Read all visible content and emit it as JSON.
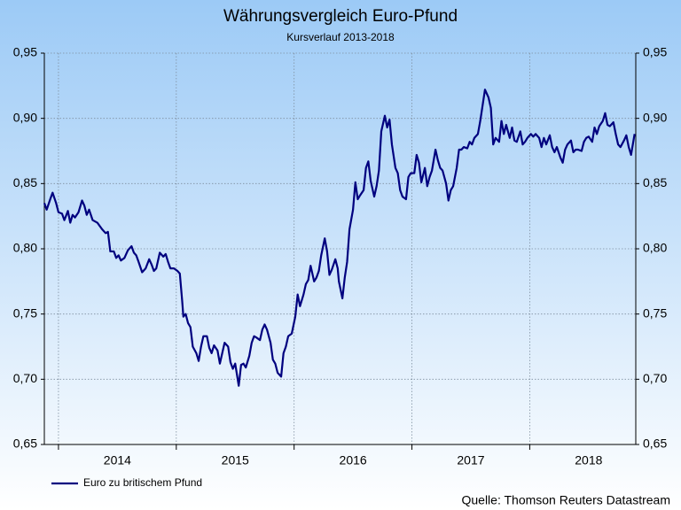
{
  "chart_data": {
    "type": "line",
    "title": "Währungsvergleich Euro-Pfund",
    "subtitle": "Kursverlauf 2013-2018",
    "source": "Quelle: Thomson Reuters Datastream",
    "xlim": [
      2013.88,
      2018.9
    ],
    "xticks": [
      2014,
      2015,
      2016,
      2017,
      2018
    ],
    "ylim": [
      0.65,
      0.95
    ],
    "yticks": [
      {
        "value": 0.65,
        "label": "0,65"
      },
      {
        "value": 0.7,
        "label": "0,70"
      },
      {
        "value": 0.75,
        "label": "0,75"
      },
      {
        "value": 0.8,
        "label": "0,80"
      },
      {
        "value": 0.85,
        "label": "0,85"
      },
      {
        "value": 0.9,
        "label": "0,90"
      },
      {
        "value": 0.95,
        "label": "0,95"
      }
    ],
    "grid": true,
    "legend": "bottom-left",
    "x": [
      2013.88,
      2013.9,
      2013.93,
      2013.95,
      2013.98,
      2014.0,
      2014.03,
      2014.05,
      2014.08,
      2014.1,
      2014.12,
      2014.14,
      2014.17,
      2014.2,
      2014.22,
      2014.24,
      2014.26,
      2014.29,
      2014.33,
      2014.37,
      2014.4,
      2014.42,
      2014.44,
      2014.47,
      2014.49,
      2014.51,
      2014.53,
      2014.56,
      2014.59,
      2014.62,
      2014.64,
      2014.66,
      2014.68,
      2014.71,
      2014.74,
      2014.77,
      2014.79,
      2014.81,
      2014.83,
      2014.86,
      2014.89,
      2014.91,
      2014.93,
      2014.95,
      2014.98,
      2015.01,
      2015.03,
      2015.05,
      2015.06,
      2015.08,
      2015.1,
      2015.12,
      2015.14,
      2015.17,
      2015.19,
      2015.21,
      2015.23,
      2015.26,
      2015.28,
      2015.3,
      2015.32,
      2015.35,
      2015.37,
      2015.39,
      2015.41,
      2015.44,
      2015.46,
      2015.48,
      2015.5,
      2015.53,
      2015.55,
      2015.57,
      2015.59,
      2015.62,
      2015.64,
      2015.66,
      2015.68,
      2015.71,
      2015.73,
      2015.75,
      2015.77,
      2015.8,
      2015.82,
      2015.84,
      2015.86,
      2015.89,
      2015.91,
      2015.93,
      2015.95,
      2015.98,
      2016.01,
      2016.03,
      2016.05,
      2016.08,
      2016.1,
      2016.12,
      2016.14,
      2016.17,
      2016.19,
      2016.21,
      2016.23,
      2016.26,
      2016.28,
      2016.3,
      2016.32,
      2016.35,
      2016.37,
      2016.38,
      2016.41,
      2016.43,
      2016.45,
      2016.47,
      2016.5,
      2016.52,
      2016.54,
      2016.56,
      2016.59,
      2016.61,
      2016.63,
      2016.65,
      2016.68,
      2016.7,
      2016.72,
      2016.74,
      2016.77,
      2016.79,
      2016.81,
      2016.83,
      2016.86,
      2016.88,
      2016.9,
      2016.92,
      2016.95,
      2016.97,
      2016.99,
      2017.02,
      2017.04,
      2017.06,
      2017.08,
      2017.11,
      2017.13,
      2017.15,
      2017.17,
      2017.2,
      2017.22,
      2017.24,
      2017.26,
      2017.29,
      2017.31,
      2017.33,
      2017.35,
      2017.38,
      2017.4,
      2017.42,
      2017.44,
      2017.47,
      2017.49,
      2017.51,
      2017.53,
      2017.56,
      2017.58,
      2017.6,
      2017.62,
      2017.65,
      2017.67,
      2017.69,
      2017.71,
      2017.74,
      2017.76,
      2017.78,
      2017.8,
      2017.83,
      2017.85,
      2017.87,
      2017.89,
      2017.92,
      2017.94,
      2017.96,
      2017.98,
      2018.01,
      2018.03,
      2018.05,
      2018.08,
      2018.1,
      2018.12,
      2018.14,
      2018.17,
      2018.19,
      2018.21,
      2018.23,
      2018.26,
      2018.28,
      2018.3,
      2018.32,
      2018.35,
      2018.37,
      2018.39,
      2018.41,
      2018.44,
      2018.46,
      2018.48,
      2018.5,
      2018.53,
      2018.55,
      2018.57,
      2018.59,
      2018.62,
      2018.64,
      2018.66,
      2018.68,
      2018.71,
      2018.73,
      2018.75,
      2018.77,
      2018.8,
      2018.82,
      2018.84,
      2018.86,
      2018.89
    ],
    "series": [
      {
        "name": "Euro zu britischem Pfund",
        "color": "#00007f",
        "values": [
          0.835,
          0.83,
          0.838,
          0.843,
          0.835,
          0.828,
          0.827,
          0.822,
          0.829,
          0.82,
          0.826,
          0.824,
          0.828,
          0.837,
          0.833,
          0.826,
          0.83,
          0.822,
          0.82,
          0.815,
          0.812,
          0.813,
          0.798,
          0.798,
          0.793,
          0.795,
          0.791,
          0.793,
          0.799,
          0.802,
          0.797,
          0.795,
          0.79,
          0.782,
          0.785,
          0.792,
          0.788,
          0.783,
          0.785,
          0.797,
          0.794,
          0.796,
          0.79,
          0.785,
          0.785,
          0.783,
          0.781,
          0.76,
          0.748,
          0.75,
          0.743,
          0.74,
          0.725,
          0.72,
          0.714,
          0.725,
          0.733,
          0.733,
          0.724,
          0.72,
          0.726,
          0.722,
          0.712,
          0.72,
          0.728,
          0.725,
          0.713,
          0.708,
          0.712,
          0.695,
          0.711,
          0.712,
          0.709,
          0.718,
          0.728,
          0.733,
          0.732,
          0.73,
          0.738,
          0.742,
          0.738,
          0.728,
          0.715,
          0.712,
          0.705,
          0.702,
          0.72,
          0.725,
          0.733,
          0.735,
          0.748,
          0.765,
          0.756,
          0.765,
          0.773,
          0.776,
          0.787,
          0.775,
          0.778,
          0.783,
          0.795,
          0.808,
          0.798,
          0.78,
          0.784,
          0.792,
          0.785,
          0.775,
          0.762,
          0.778,
          0.79,
          0.815,
          0.83,
          0.851,
          0.838,
          0.841,
          0.845,
          0.862,
          0.867,
          0.852,
          0.84,
          0.848,
          0.86,
          0.89,
          0.902,
          0.893,
          0.899,
          0.88,
          0.862,
          0.858,
          0.845,
          0.84,
          0.838,
          0.855,
          0.858,
          0.858,
          0.872,
          0.866,
          0.851,
          0.862,
          0.848,
          0.855,
          0.86,
          0.876,
          0.868,
          0.862,
          0.86,
          0.85,
          0.837,
          0.845,
          0.848,
          0.862,
          0.876,
          0.876,
          0.878,
          0.877,
          0.882,
          0.88,
          0.885,
          0.888,
          0.898,
          0.91,
          0.922,
          0.916,
          0.908,
          0.88,
          0.885,
          0.882,
          0.898,
          0.888,
          0.895,
          0.885,
          0.893,
          0.883,
          0.882,
          0.89,
          0.88,
          0.882,
          0.885,
          0.888,
          0.886,
          0.888,
          0.885,
          0.878,
          0.885,
          0.88,
          0.887,
          0.878,
          0.874,
          0.878,
          0.87,
          0.866,
          0.876,
          0.88,
          0.883,
          0.874,
          0.876,
          0.876,
          0.875,
          0.882,
          0.885,
          0.886,
          0.882,
          0.893,
          0.888,
          0.894,
          0.898,
          0.904,
          0.895,
          0.894,
          0.897,
          0.888,
          0.88,
          0.878,
          0.883,
          0.887,
          0.878,
          0.872,
          0.888
        ]
      }
    ]
  }
}
